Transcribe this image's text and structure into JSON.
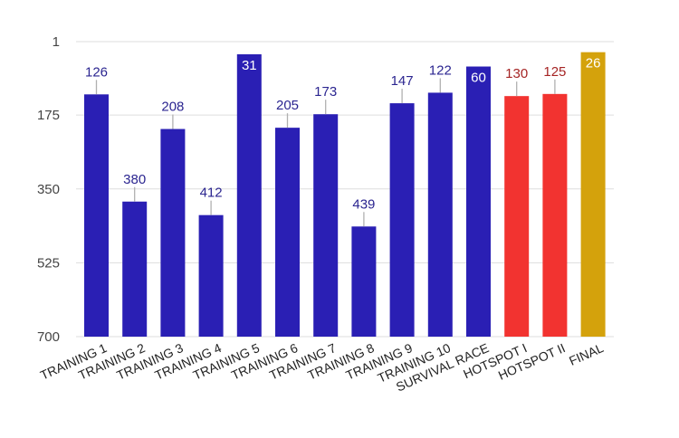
{
  "chart_data": {
    "type": "bar",
    "y_axis_reversed": true,
    "ylim": [
      1,
      700
    ],
    "yticks": [
      1,
      175,
      350,
      525,
      700
    ],
    "grid": true,
    "legend": "none",
    "categories": [
      "TRAINING 1",
      "TRAINING 2",
      "TRAINING 3",
      "TRAINING 4",
      "TRAINING 5",
      "TRAINING 6",
      "TRAINING 7",
      "TRAINING 8",
      "TRAINING 9",
      "TRAINING 10",
      "SURVIVAL RACE",
      "HOTSPOT I",
      "HOTSPOT II",
      "FINAL"
    ],
    "values": [
      126,
      380,
      208,
      412,
      31,
      205,
      173,
      439,
      147,
      122,
      60,
      130,
      125,
      26
    ],
    "bar_colors": [
      "#2a1fb4",
      "#2a1fb4",
      "#2a1fb4",
      "#2a1fb4",
      "#2a1fb4",
      "#2a1fb4",
      "#2a1fb4",
      "#2a1fb4",
      "#2a1fb4",
      "#2a1fb4",
      "#2a1fb4",
      "#f23330",
      "#f23330",
      "#d4a20c"
    ],
    "label_colors": [
      "#2b2590",
      "#2b2590",
      "#2b2590",
      "#2b2590",
      "#ffffff",
      "#2b2590",
      "#2b2590",
      "#2b2590",
      "#2b2590",
      "#2b2590",
      "#ffffff",
      "#a52424",
      "#a52424",
      "#ffffff"
    ],
    "labels_inside": [
      false,
      false,
      false,
      false,
      true,
      false,
      false,
      false,
      false,
      false,
      true,
      false,
      false,
      true
    ],
    "colors": {
      "grid": "#dddddd",
      "leader": "#b0b0b0"
    }
  }
}
